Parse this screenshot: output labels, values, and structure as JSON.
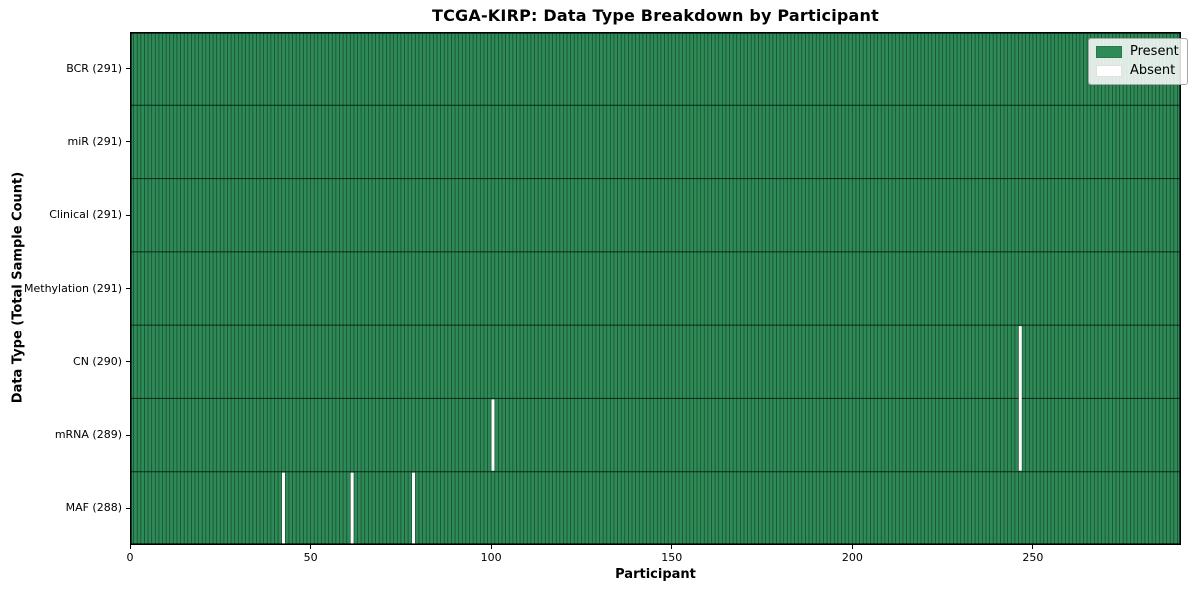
{
  "chart_data": {
    "type": "heatmap",
    "title": "TCGA-KIRP: Data Type Breakdown by Participant",
    "xlabel": "Participant",
    "ylabel": "Data Type (Total Sample Count)",
    "n_participants": 291,
    "x_ticks": [
      0,
      50,
      100,
      150,
      200,
      250
    ],
    "rows": [
      {
        "label": "BCR (291)",
        "data_type": "BCR",
        "present_count": 291,
        "absent_participants": []
      },
      {
        "label": "miR (291)",
        "data_type": "miR",
        "present_count": 291,
        "absent_participants": []
      },
      {
        "label": "Clinical (291)",
        "data_type": "Clinical",
        "present_count": 291,
        "absent_participants": []
      },
      {
        "label": "Methylation (291)",
        "data_type": "Methylation",
        "present_count": 291,
        "absent_participants": []
      },
      {
        "label": "CN (290)",
        "data_type": "CN",
        "present_count": 290,
        "absent_participants": [
          246
        ]
      },
      {
        "label": "mRNA (289)",
        "data_type": "mRNA",
        "present_count": 289,
        "absent_participants": [
          100,
          246
        ]
      },
      {
        "label": "MAF (288)",
        "data_type": "MAF",
        "present_count": 288,
        "absent_participants": [
          42,
          61,
          78
        ]
      }
    ],
    "legend": [
      {
        "label": "Present",
        "color": "#2e8b57"
      },
      {
        "label": "Absent",
        "color": "#ffffff"
      }
    ],
    "colors": {
      "present": "#2e8b57",
      "absent": "#ffffff",
      "cell_edge": "rgba(0,0,0,0.45)",
      "row_edge": "rgba(0,0,0,0.7)",
      "spine": "#000000"
    },
    "legend_position": "upper right",
    "grid": "cell-edges"
  }
}
